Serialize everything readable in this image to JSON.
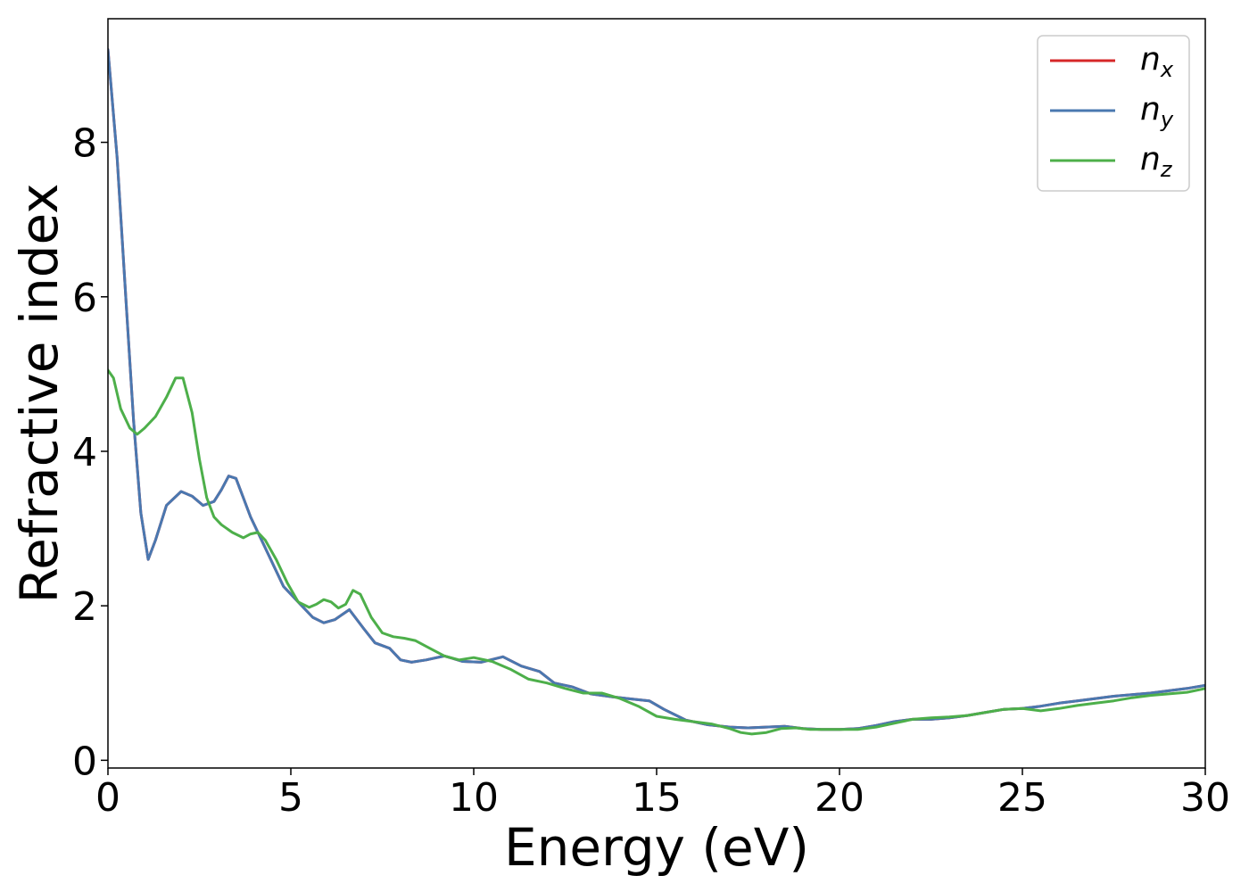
{
  "chart_data": {
    "type": "line",
    "title": "",
    "xlabel": "Energy (eV)",
    "ylabel": "Refractive index",
    "xlim": [
      0,
      30
    ],
    "ylim": [
      -0.1,
      9.6
    ],
    "xticks": [
      0,
      5,
      10,
      15,
      20,
      25,
      30
    ],
    "yticks": [
      0,
      2,
      4,
      6,
      8
    ],
    "grid": false,
    "legend_position": "top-right",
    "series": [
      {
        "name": "n",
        "sub": "x",
        "color": "#d62728",
        "x": [
          0.0,
          0.25,
          0.5,
          0.7,
          0.9,
          1.1,
          1.3,
          1.6,
          2.0,
          2.3,
          2.6,
          2.9,
          3.1,
          3.3,
          3.5,
          3.7,
          3.9,
          4.2,
          4.5,
          4.8,
          5.2,
          5.6,
          5.9,
          6.2,
          6.6,
          7.0,
          7.3,
          7.7,
          8.0,
          8.3,
          8.7,
          9.2,
          9.7,
          10.2,
          10.8,
          11.3,
          11.8,
          12.2,
          12.7,
          13.2,
          13.8,
          14.2,
          14.8,
          15.2,
          15.8,
          16.4,
          17.0,
          17.5,
          18.0,
          18.5,
          19.0,
          19.5,
          20.0,
          20.5,
          21.0,
          21.5,
          22.0,
          22.5,
          23.0,
          23.5,
          24.0,
          24.5,
          25.0,
          25.5,
          26.0,
          26.5,
          27.0,
          27.5,
          28.0,
          28.5,
          29.0,
          29.5,
          30.0
        ],
        "y": [
          9.2,
          7.8,
          5.9,
          4.4,
          3.2,
          2.6,
          2.85,
          3.3,
          3.48,
          3.42,
          3.3,
          3.35,
          3.5,
          3.68,
          3.65,
          3.4,
          3.15,
          2.85,
          2.55,
          2.25,
          2.05,
          1.85,
          1.78,
          1.82,
          1.95,
          1.7,
          1.52,
          1.45,
          1.3,
          1.27,
          1.3,
          1.35,
          1.28,
          1.27,
          1.34,
          1.22,
          1.15,
          1.0,
          0.95,
          0.86,
          0.82,
          0.8,
          0.77,
          0.66,
          0.52,
          0.46,
          0.43,
          0.42,
          0.43,
          0.44,
          0.41,
          0.4,
          0.4,
          0.41,
          0.45,
          0.5,
          0.53,
          0.53,
          0.55,
          0.58,
          0.62,
          0.66,
          0.67,
          0.7,
          0.74,
          0.77,
          0.8,
          0.83,
          0.85,
          0.87,
          0.9,
          0.93,
          0.97
        ]
      },
      {
        "name": "n",
        "sub": "y",
        "color": "#4a78b0",
        "x": [
          0.0,
          0.25,
          0.5,
          0.7,
          0.9,
          1.1,
          1.3,
          1.6,
          2.0,
          2.3,
          2.6,
          2.9,
          3.1,
          3.3,
          3.5,
          3.7,
          3.9,
          4.2,
          4.5,
          4.8,
          5.2,
          5.6,
          5.9,
          6.2,
          6.6,
          7.0,
          7.3,
          7.7,
          8.0,
          8.3,
          8.7,
          9.2,
          9.7,
          10.2,
          10.8,
          11.3,
          11.8,
          12.2,
          12.7,
          13.2,
          13.8,
          14.2,
          14.8,
          15.2,
          15.8,
          16.4,
          17.0,
          17.5,
          18.0,
          18.5,
          19.0,
          19.5,
          20.0,
          20.5,
          21.0,
          21.5,
          22.0,
          22.5,
          23.0,
          23.5,
          24.0,
          24.5,
          25.0,
          25.5,
          26.0,
          26.5,
          27.0,
          27.5,
          28.0,
          28.5,
          29.0,
          29.5,
          30.0
        ],
        "y": [
          9.2,
          7.8,
          5.9,
          4.4,
          3.2,
          2.6,
          2.85,
          3.3,
          3.48,
          3.42,
          3.3,
          3.35,
          3.5,
          3.68,
          3.65,
          3.4,
          3.15,
          2.85,
          2.55,
          2.25,
          2.05,
          1.85,
          1.78,
          1.82,
          1.95,
          1.7,
          1.52,
          1.45,
          1.3,
          1.27,
          1.3,
          1.35,
          1.28,
          1.27,
          1.34,
          1.22,
          1.15,
          1.0,
          0.95,
          0.86,
          0.82,
          0.8,
          0.77,
          0.66,
          0.52,
          0.46,
          0.43,
          0.42,
          0.43,
          0.44,
          0.41,
          0.4,
          0.4,
          0.41,
          0.45,
          0.5,
          0.53,
          0.53,
          0.55,
          0.58,
          0.62,
          0.66,
          0.67,
          0.7,
          0.74,
          0.77,
          0.8,
          0.83,
          0.85,
          0.87,
          0.9,
          0.93,
          0.97
        ]
      },
      {
        "name": "n",
        "sub": "z",
        "color": "#4daf4a",
        "x": [
          0.0,
          0.15,
          0.35,
          0.6,
          0.8,
          1.0,
          1.3,
          1.6,
          1.85,
          2.05,
          2.3,
          2.5,
          2.7,
          2.9,
          3.1,
          3.4,
          3.7,
          3.9,
          4.1,
          4.3,
          4.6,
          4.9,
          5.2,
          5.5,
          5.7,
          5.9,
          6.1,
          6.3,
          6.5,
          6.7,
          6.9,
          7.2,
          7.5,
          7.8,
          8.1,
          8.4,
          8.8,
          9.2,
          9.6,
          10.0,
          10.5,
          11.0,
          11.5,
          12.0,
          12.5,
          13.0,
          13.5,
          14.0,
          14.5,
          15.0,
          15.5,
          16.0,
          16.5,
          17.0,
          17.3,
          17.6,
          18.0,
          18.4,
          18.8,
          19.2,
          19.6,
          20.0,
          20.5,
          21.0,
          21.5,
          22.0,
          22.5,
          23.0,
          23.5,
          24.0,
          24.5,
          25.0,
          25.5,
          26.0,
          26.5,
          27.0,
          27.5,
          28.0,
          28.5,
          29.0,
          29.5,
          30.0
        ],
        "y": [
          5.05,
          4.95,
          4.55,
          4.3,
          4.22,
          4.3,
          4.45,
          4.7,
          4.95,
          4.95,
          4.5,
          3.9,
          3.4,
          3.15,
          3.05,
          2.95,
          2.88,
          2.93,
          2.95,
          2.85,
          2.6,
          2.3,
          2.05,
          1.98,
          2.02,
          2.08,
          2.05,
          1.97,
          2.02,
          2.2,
          2.15,
          1.85,
          1.65,
          1.6,
          1.58,
          1.55,
          1.45,
          1.35,
          1.3,
          1.33,
          1.28,
          1.18,
          1.05,
          1.0,
          0.93,
          0.87,
          0.87,
          0.8,
          0.7,
          0.57,
          0.53,
          0.5,
          0.47,
          0.41,
          0.36,
          0.34,
          0.36,
          0.41,
          0.42,
          0.4,
          0.4,
          0.4,
          0.4,
          0.43,
          0.48,
          0.53,
          0.55,
          0.56,
          0.58,
          0.62,
          0.66,
          0.67,
          0.64,
          0.67,
          0.71,
          0.74,
          0.77,
          0.81,
          0.84,
          0.86,
          0.88,
          0.93
        ]
      }
    ]
  }
}
